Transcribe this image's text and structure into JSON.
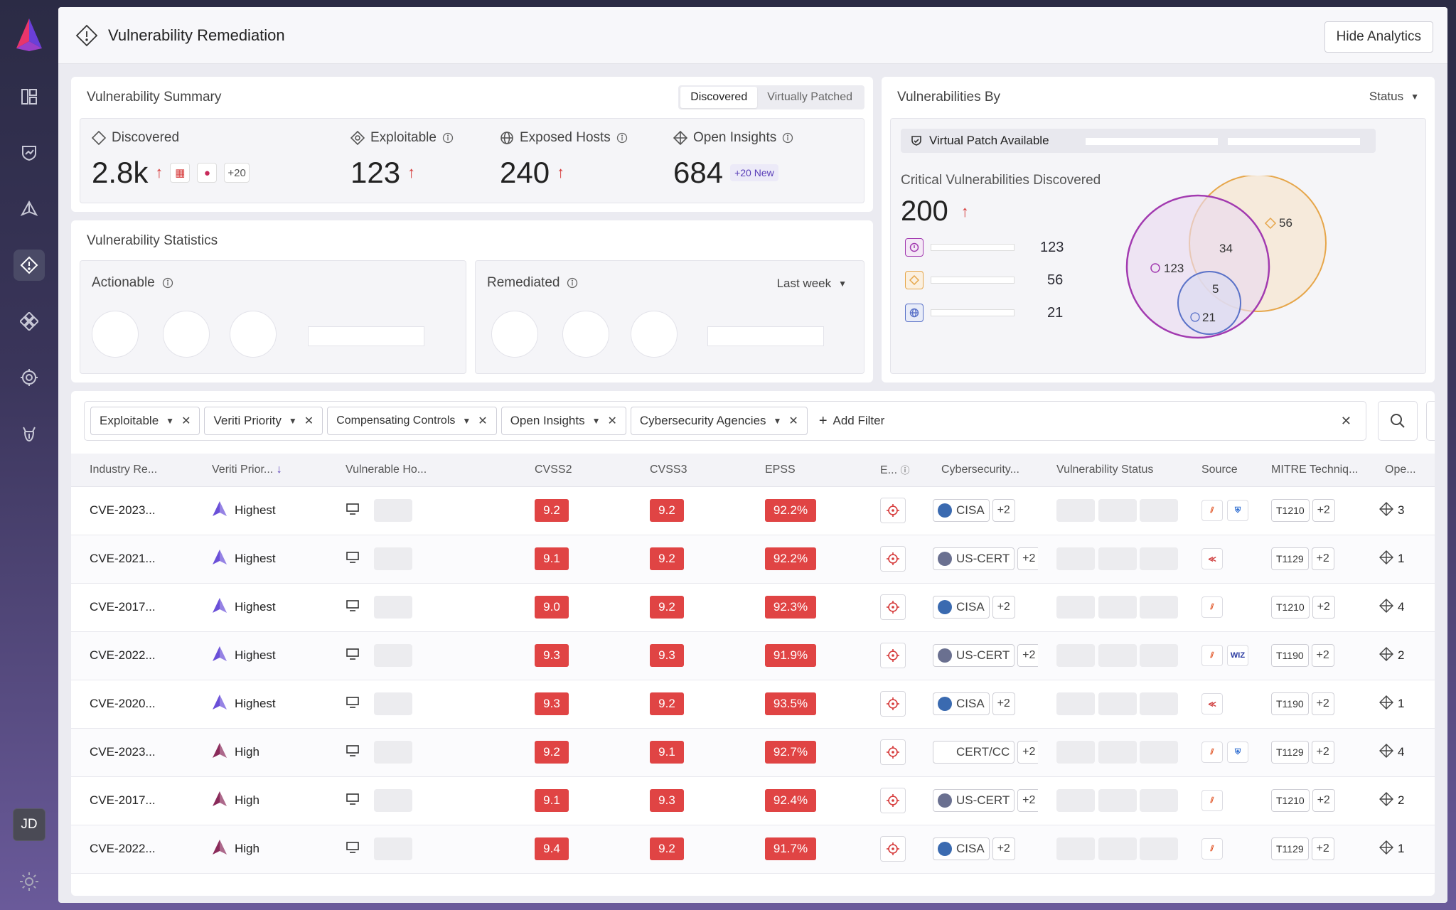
{
  "header": {
    "title": "Vulnerability Remediation",
    "hide_button": "Hide Analytics"
  },
  "user": {
    "initials": "JD"
  },
  "summary": {
    "title": "Vulnerability Summary",
    "toggle": [
      "Discovered",
      "Virtually Patched"
    ],
    "discovered": {
      "label": "Discovered",
      "value": "2.8k",
      "extra": "+20"
    },
    "exploitable": {
      "label": "Exploitable",
      "value": "123"
    },
    "exposed": {
      "label": "Exposed Hosts",
      "value": "240"
    },
    "insights": {
      "label": "Open Insights",
      "value": "684",
      "badge": "+20 New"
    }
  },
  "statistics": {
    "title": "Vulnerability Statistics",
    "actionable": "Actionable",
    "remediated": "Remediated",
    "period": "Last week"
  },
  "vuln_by": {
    "title": "Vulnerabilities By",
    "dropdown": "Status",
    "patch_label": "Virtual Patch Available",
    "critical_title": "Critical Vulnerabilities Discovered",
    "critical_value": "200",
    "legend": [
      {
        "value": "123",
        "color": "#a23ab0"
      },
      {
        "value": "56",
        "color": "#e6a64a"
      },
      {
        "value": "21",
        "color": "#5a72c8"
      }
    ],
    "venn": {
      "a": "123",
      "b": "56",
      "c": "21",
      "ab": "34",
      "abc": "5"
    }
  },
  "filters": {
    "chips": [
      "Exploitable",
      "Veriti Priority",
      "Compensating Controls",
      "Open Insights",
      "Cybersecurity Agencies"
    ],
    "add": "Add Filter"
  },
  "table": {
    "columns": [
      "Industry Re...",
      "Veriti Prior...",
      "Vulnerable Ho...",
      "CVSS2",
      "CVSS3",
      "EPSS",
      "E...",
      "Cybersecurity...",
      "Vulnerability Status",
      "Source",
      "MITRE Techniq...",
      "Ope..."
    ],
    "rows": [
      {
        "cve": "CVE-2023...",
        "priority": "Highest",
        "cvss2": "9.2",
        "cvss3": "9.2",
        "epss": "92.2%",
        "agency": "CISA",
        "agency_more": "+2",
        "mitre": "T1210",
        "mitre_more": "+2",
        "insights": "3"
      },
      {
        "cve": "CVE-2021...",
        "priority": "Highest",
        "cvss2": "9.1",
        "cvss3": "9.2",
        "epss": "92.2%",
        "agency": "US-CERT",
        "agency_more": "+2",
        "mitre": "T1129",
        "mitre_more": "+2",
        "insights": "1"
      },
      {
        "cve": "CVE-2017...",
        "priority": "Highest",
        "cvss2": "9.0",
        "cvss3": "9.2",
        "epss": "92.3%",
        "agency": "CISA",
        "agency_more": "+2",
        "mitre": "T1210",
        "mitre_more": "+2",
        "insights": "4"
      },
      {
        "cve": "CVE-2022...",
        "priority": "Highest",
        "cvss2": "9.3",
        "cvss3": "9.3",
        "epss": "91.9%",
        "agency": "US-CERT",
        "agency_more": "+2",
        "mitre": "T1190",
        "mitre_more": "+2",
        "insights": "2"
      },
      {
        "cve": "CVE-2020...",
        "priority": "Highest",
        "cvss2": "9.3",
        "cvss3": "9.2",
        "epss": "93.5%",
        "agency": "CISA",
        "agency_more": "+2",
        "mitre": "T1190",
        "mitre_more": "+2",
        "insights": "1"
      },
      {
        "cve": "CVE-2023...",
        "priority": "High",
        "cvss2": "9.2",
        "cvss3": "9.1",
        "epss": "92.7%",
        "agency": "CERT/CC",
        "agency_more": "+2",
        "mitre": "T1129",
        "mitre_more": "+2",
        "insights": "4"
      },
      {
        "cve": "CVE-2017...",
        "priority": "High",
        "cvss2": "9.1",
        "cvss3": "9.3",
        "epss": "92.4%",
        "agency": "US-CERT",
        "agency_more": "+2",
        "mitre": "T1210",
        "mitre_more": "+2",
        "insights": "2"
      },
      {
        "cve": "CVE-2022...",
        "priority": "High",
        "cvss2": "9.4",
        "cvss3": "9.2",
        "epss": "91.7%",
        "agency": "CISA",
        "agency_more": "+2",
        "mitre": "T1129",
        "mitre_more": "+2",
        "insights": "1"
      }
    ]
  }
}
